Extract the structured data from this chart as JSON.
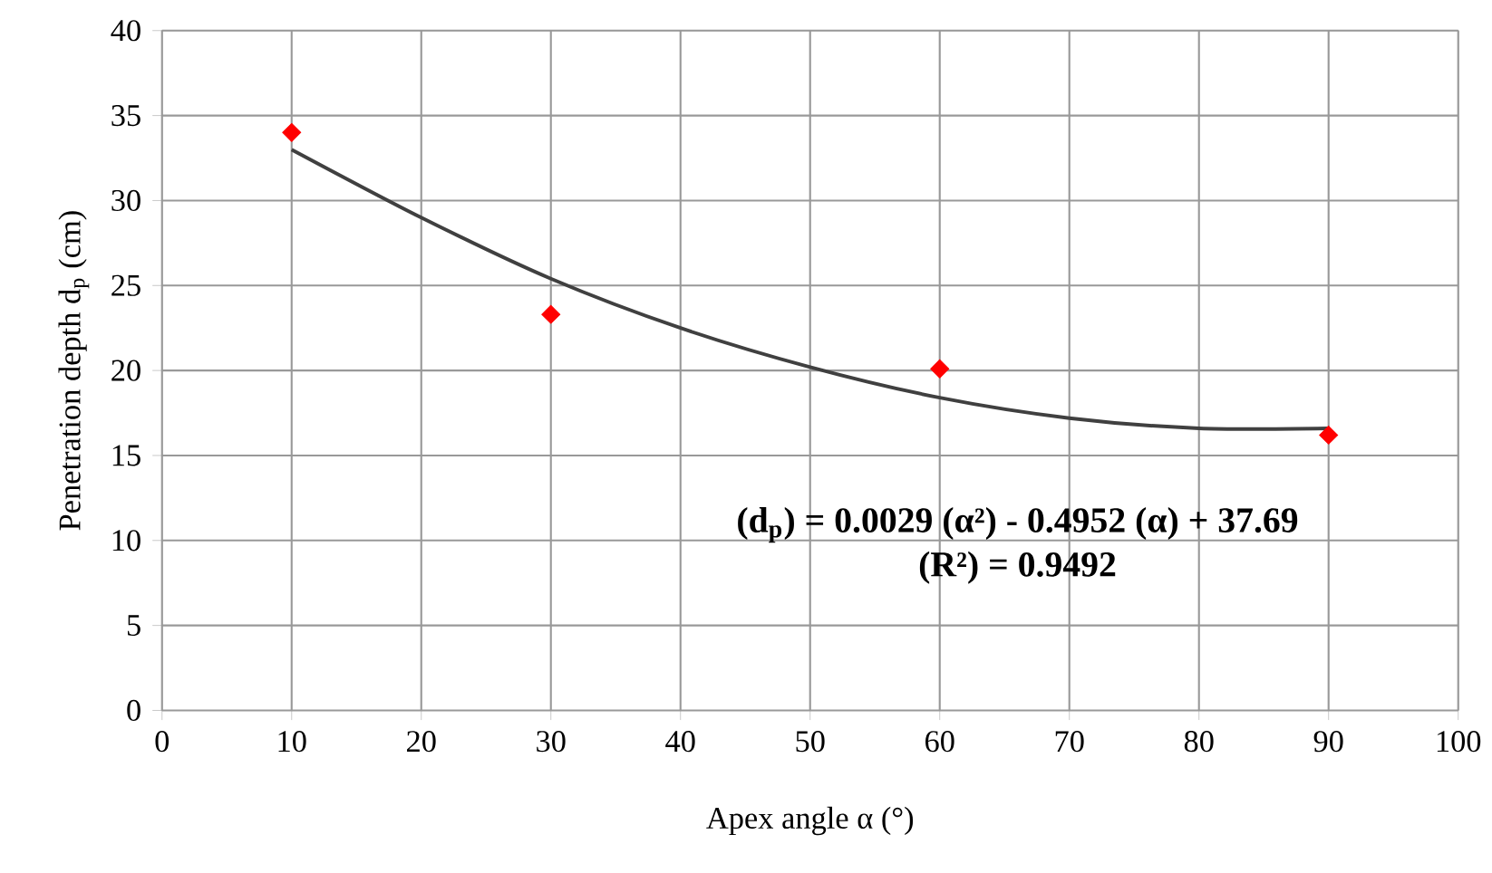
{
  "chart_data": {
    "type": "scatter",
    "xlabel": "Apex angle α (°)",
    "ylabel": "Penetration depth d$_{p}$ (cm)",
    "x": [
      10,
      30,
      60,
      90
    ],
    "series": [
      {
        "color": "#ff0000",
        "marker": "diamond",
        "values": [
          34.0,
          23.3,
          20.1,
          16.2
        ]
      },
      {
        "type": "line",
        "color": "#404040",
        "marker": "none",
        "x": [
          10,
          20,
          30,
          40,
          50,
          60,
          70,
          80,
          90
        ],
        "values": [
          33.0,
          29.0,
          25.4,
          22.5,
          20.2,
          18.4,
          17.2,
          16.6,
          16.6
        ]
      }
    ],
    "xlim": [
      0,
      100
    ],
    "xticks": [
      0,
      10,
      20,
      30,
      40,
      50,
      60,
      70,
      80,
      90,
      100
    ],
    "ylim": [
      0,
      40
    ],
    "yticks": [
      0,
      5,
      10,
      15,
      20,
      25,
      30,
      35,
      40
    ],
    "grid": true,
    "annotations": [
      "(d$_{p}$) = 0.0029 (α²) - 0.4952 (α) + 37.69",
      "(R²)  =  0.9492"
    ]
  }
}
